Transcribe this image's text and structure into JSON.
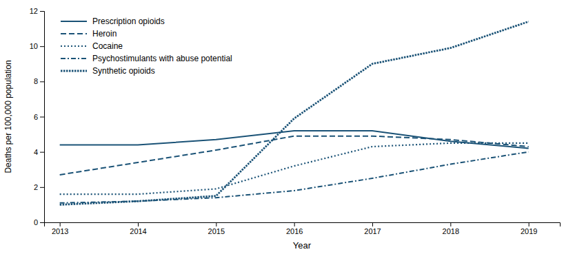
{
  "chart_data": {
    "type": "line",
    "x": [
      2013,
      2014,
      2015,
      2016,
      2017,
      2018,
      2019
    ],
    "series": [
      {
        "name": "Prescription opioids",
        "color": "#1a5276",
        "line_style": "solid",
        "values": [
          4.4,
          4.4,
          4.7,
          5.2,
          5.2,
          4.6,
          4.2
        ]
      },
      {
        "name": "Heroin",
        "color": "#1a5276",
        "line_style": "dashed",
        "values": [
          2.7,
          3.4,
          4.1,
          4.9,
          4.9,
          4.7,
          4.3
        ]
      },
      {
        "name": "Cocaine",
        "color": "#1a5276",
        "line_style": "dotted",
        "values": [
          1.6,
          1.6,
          1.9,
          3.2,
          4.3,
          4.5,
          4.5
        ]
      },
      {
        "name": "Psychostimulants with abuse potential",
        "color": "#1a5276",
        "line_style": "dashdot",
        "values": [
          1.1,
          1.2,
          1.4,
          1.8,
          2.5,
          3.3,
          4.0
        ]
      },
      {
        "name": "Synthetic opioids",
        "color": "#1a5276",
        "line_style": "densely-dotted",
        "values": [
          1.0,
          1.2,
          1.5,
          5.9,
          9.0,
          9.9,
          11.4
        ]
      }
    ],
    "xlabel": "Year",
    "ylabel": "Deaths per 100,000 population",
    "xlim": [
      2012.8,
      2019.4
    ],
    "xticks": [
      2013,
      2014,
      2015,
      2016,
      2017,
      2018,
      2019
    ],
    "ylim": [
      0,
      12
    ],
    "yticks": [
      0,
      2,
      4,
      6,
      8,
      10,
      12
    ],
    "grid": false,
    "legend": "upper left"
  }
}
